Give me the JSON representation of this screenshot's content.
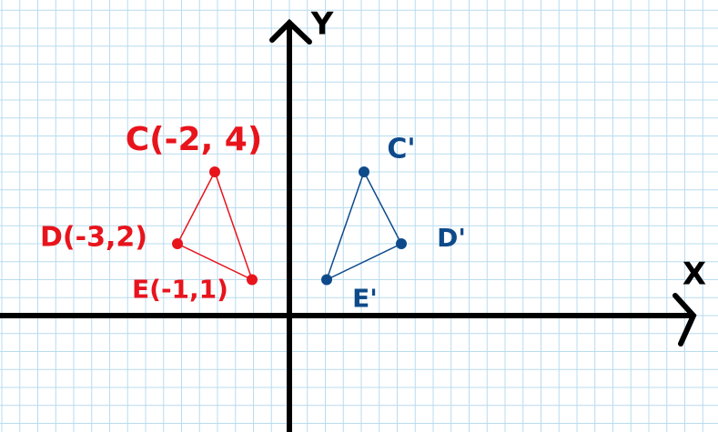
{
  "axes": {
    "x_label": "X",
    "y_label": "Y"
  },
  "triangles": [
    {
      "color": "#e8141c",
      "points": [
        {
          "label": "C(-2, 4)",
          "x": -2,
          "y": 4
        },
        {
          "label": "D(-3,2)",
          "x": -3,
          "y": 2
        },
        {
          "label": "E(-1,1)",
          "x": -1,
          "y": 1
        }
      ]
    },
    {
      "color": "#0e4a8a",
      "points": [
        {
          "label": "C'",
          "x": 2,
          "y": 4
        },
        {
          "label": "D'",
          "x": 3,
          "y": 2
        },
        {
          "label": "E'",
          "x": 1,
          "y": 1
        }
      ]
    }
  ]
}
